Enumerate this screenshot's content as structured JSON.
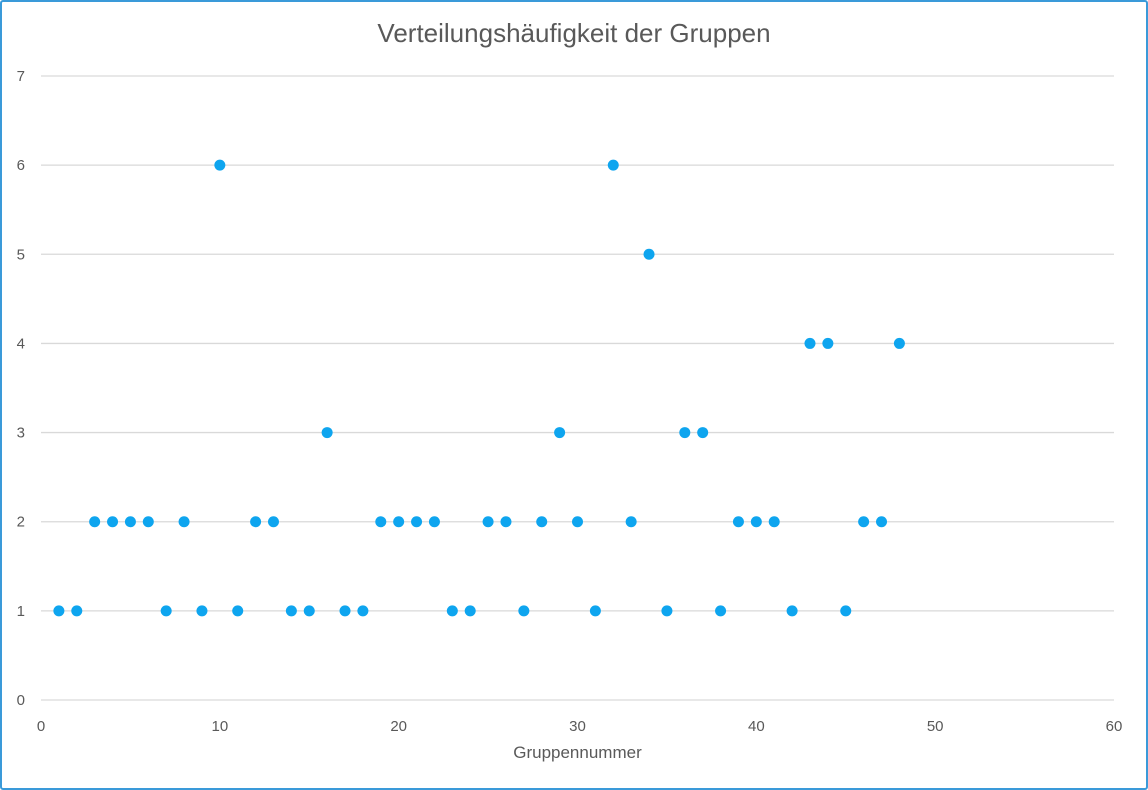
{
  "chart_data": {
    "type": "scatter",
    "title": "Verteilungshäufigkeit der Gruppen",
    "xlabel": "Gruppennummer",
    "ylabel": "",
    "xlim": [
      0,
      60
    ],
    "ylim": [
      0,
      7
    ],
    "x_ticks": [
      "0",
      "10",
      "20",
      "30",
      "40",
      "50",
      "60"
    ],
    "y_ticks": [
      "0",
      "1",
      "2",
      "3",
      "4",
      "5",
      "6",
      "7"
    ],
    "grid": "horizontal",
    "point_color": "#0ea5ef",
    "series": [
      {
        "x": [
          1,
          2,
          3,
          4,
          5,
          6,
          7,
          8,
          9,
          10,
          11,
          12,
          13,
          14,
          15,
          16,
          17,
          18,
          19,
          20,
          21,
          22,
          23,
          24,
          25,
          26,
          27,
          28,
          29,
          30,
          31,
          32,
          33,
          34,
          35,
          36,
          37,
          38,
          39,
          40,
          41,
          42,
          43,
          44,
          45,
          46,
          47,
          48
        ],
        "y": [
          1,
          1,
          2,
          2,
          2,
          2,
          1,
          2,
          1,
          6,
          1,
          2,
          2,
          1,
          1,
          3,
          1,
          1,
          2,
          2,
          2,
          2,
          1,
          1,
          2,
          2,
          1,
          2,
          3,
          2,
          1,
          6,
          2,
          5,
          1,
          3,
          3,
          1,
          2,
          2,
          2,
          1,
          4,
          4,
          1,
          2,
          2,
          4
        ]
      }
    ]
  }
}
